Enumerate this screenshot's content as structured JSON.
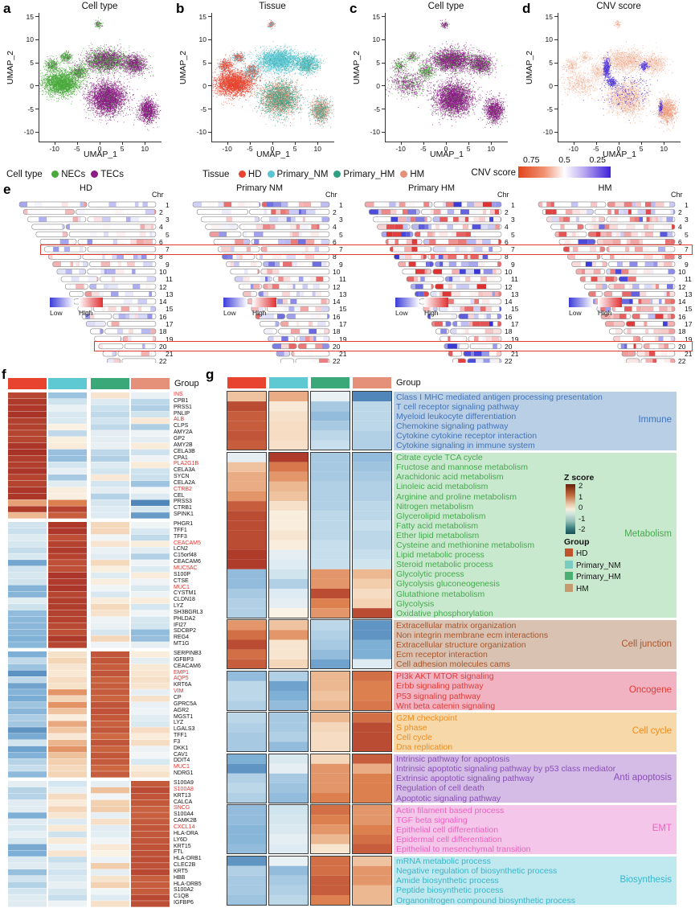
{
  "letters": {
    "a": "a",
    "b": "b",
    "c": "c",
    "d": "d",
    "e": "e",
    "f": "f",
    "g": "g"
  },
  "colors": {
    "necs": "#4aa93c",
    "tecs": "#8a1c84",
    "hd": "#e8432e",
    "primary_nm": "#5bc4d2",
    "primary_hm": "#2ea183",
    "hm": "#e59179",
    "header": [
      "#e8432e",
      "#5ec8d3",
      "#3aa878",
      "#e5917a"
    ],
    "cnv_gradient_left": "#e2441a",
    "cnv_gradient_right": "#3d20d9",
    "highlight_box": "#e03a30"
  },
  "umap": {
    "x_label": "UMAP_1",
    "y_label": "UMAP_2",
    "x_ticks": [
      "-10",
      "-5",
      "0",
      "5",
      "10"
    ],
    "y_ticks": [
      "15",
      "10",
      "5",
      "0",
      "-5",
      "-10"
    ],
    "panels": [
      {
        "letter": "a",
        "title": "Cell type"
      },
      {
        "letter": "b",
        "title": "Tissue"
      },
      {
        "letter": "c",
        "title": "Cell type"
      },
      {
        "letter": "d",
        "title": "CNV score"
      }
    ]
  },
  "legend_row": {
    "cell_type": {
      "label": "Cell type",
      "items": [
        {
          "label": "NECs",
          "color": "#4aa93c"
        },
        {
          "label": "TECs",
          "color": "#8a1c84"
        }
      ]
    },
    "tissue": {
      "label": "Tissue",
      "items": [
        {
          "label": "HD",
          "color": "#e8432e"
        },
        {
          "label": "Primary_NM",
          "color": "#5bc4d2"
        },
        {
          "label": "Primary_HM",
          "color": "#2ea183"
        },
        {
          "label": "HM",
          "color": "#e59179"
        }
      ]
    },
    "cnv": {
      "label": "CNV score",
      "ticks": [
        "0.75",
        "0.5",
        "0.25"
      ]
    }
  },
  "panel_e": {
    "chr_label": "Chr",
    "low_label": "Low",
    "high_label": "High",
    "chromosomes": [
      1,
      2,
      3,
      4,
      5,
      6,
      7,
      8,
      9,
      10,
      11,
      12,
      13,
      14,
      15,
      16,
      17,
      18,
      19,
      20,
      21,
      22
    ],
    "highlighted_chromosomes": [
      7,
      20
    ],
    "centromere_fracs": [
      0.5,
      0.39,
      0.46,
      0.27,
      0.27,
      0.32,
      0.38,
      0.31,
      0.35,
      0.3,
      0.4,
      0.26,
      0.17,
      0.17,
      0.19,
      0.41,
      0.29,
      0.21,
      0.45,
      0.44,
      0.27,
      0.29
    ],
    "columns": [
      {
        "title": "HD",
        "red_p": 0.18,
        "blue_p": 0.22,
        "white_p": 0.6,
        "intensity": 0.55
      },
      {
        "title": "Primary NM",
        "red_p": 0.3,
        "blue_p": 0.3,
        "white_p": 0.4,
        "intensity": 0.75
      },
      {
        "title": "Primary HM",
        "red_p": 0.42,
        "blue_p": 0.33,
        "white_p": 0.25,
        "intensity": 1.0
      },
      {
        "title": "HM",
        "red_p": 0.55,
        "blue_p": 0.15,
        "white_p": 0.3,
        "intensity": 0.95
      }
    ]
  },
  "panel_f": {
    "group_label": "Group",
    "group_patterns": [
      [
        2.3,
        -0.55,
        -0.4,
        -0.5
      ],
      [
        -0.9,
        2.2,
        -0.1,
        -0.6
      ],
      [
        -1.3,
        0.6,
        1.9,
        -0.2
      ],
      [
        -1.0,
        -0.1,
        0.3,
        2.0
      ]
    ],
    "genes": [
      [
        "INS",
        1,
        0
      ],
      [
        "CPB1",
        0,
        0
      ],
      [
        "PRSS1",
        0,
        0
      ],
      [
        "PNLIP",
        0,
        0
      ],
      [
        "ALB",
        1,
        0
      ],
      [
        "CLPS",
        0,
        0
      ],
      [
        "AMY2A",
        0,
        0
      ],
      [
        "GP2",
        0,
        0
      ],
      [
        "AMY2B",
        0,
        0
      ],
      [
        "CELA3B",
        0,
        0
      ],
      [
        "CPA1",
        0,
        0
      ],
      [
        "PLA2G1B",
        1,
        0
      ],
      [
        "CELA3A",
        0,
        0
      ],
      [
        "SYCN",
        0,
        0
      ],
      [
        "CELA2A",
        0,
        0
      ],
      [
        "CTRB2",
        1,
        0
      ],
      [
        "CEL",
        0,
        0
      ],
      [
        "PRSS3",
        0,
        0
      ],
      [
        "CTRB1",
        0,
        0
      ],
      [
        "SPINK1",
        0,
        0
      ],
      [
        "PHGR1",
        0,
        1
      ],
      [
        "TFF1",
        0,
        1
      ],
      [
        "TFF3",
        0,
        1
      ],
      [
        "CEACAM5",
        1,
        1
      ],
      [
        "LCN2",
        0,
        1
      ],
      [
        "C15orf48",
        0,
        1
      ],
      [
        "CEACAM6",
        0,
        1
      ],
      [
        "MUC5AC",
        1,
        1
      ],
      [
        "S100P",
        0,
        1
      ],
      [
        "CTSE",
        0,
        1
      ],
      [
        "MUC1",
        1,
        1
      ],
      [
        "CYSTM1",
        0,
        1
      ],
      [
        "CLDN18",
        0,
        1
      ],
      [
        "LYZ",
        0,
        1
      ],
      [
        "SH3BGRL3",
        0,
        1
      ],
      [
        "PHLDA2",
        0,
        1
      ],
      [
        "IFI27",
        0,
        1
      ],
      [
        "SDCBP2",
        0,
        1
      ],
      [
        "REG4",
        0,
        1
      ],
      [
        "MT1G",
        0,
        1
      ],
      [
        "SERPINB3",
        0,
        2
      ],
      [
        "IGFBP3",
        0,
        2
      ],
      [
        "CEACAM6",
        0,
        2
      ],
      [
        "EMP1",
        1,
        2
      ],
      [
        "AQP5",
        1,
        2
      ],
      [
        "KRT6A",
        0,
        2
      ],
      [
        "VIM",
        1,
        2
      ],
      [
        "CP",
        0,
        2
      ],
      [
        "GPRC5A",
        0,
        2
      ],
      [
        "AGR2",
        0,
        2
      ],
      [
        "MGST1",
        0,
        2
      ],
      [
        "LYZ",
        0,
        2
      ],
      [
        "LGALS3",
        0,
        2
      ],
      [
        "TFF1",
        0,
        2
      ],
      [
        "F3",
        0,
        2
      ],
      [
        "DKK1",
        0,
        2
      ],
      [
        "CAV1",
        0,
        2
      ],
      [
        "DDIT4",
        0,
        2
      ],
      [
        "MUC1",
        1,
        2
      ],
      [
        "NDRG1",
        0,
        2
      ],
      [
        "S100A9",
        0,
        3
      ],
      [
        "S100A8",
        1,
        3
      ],
      [
        "KRT13",
        0,
        3
      ],
      [
        "CALCA",
        0,
        3
      ],
      [
        "SNCG",
        1,
        3
      ],
      [
        "S100A4",
        0,
        3
      ],
      [
        "CAMK2B",
        0,
        3
      ],
      [
        "CXCL14",
        1,
        3
      ],
      [
        "HLA-DRA",
        0,
        3
      ],
      [
        "LY6D",
        0,
        3
      ],
      [
        "KRT15",
        0,
        3
      ],
      [
        "FTL",
        0,
        3
      ],
      [
        "HLA-DRB1",
        0,
        3
      ],
      [
        "CLEC2B",
        0,
        3
      ],
      [
        "KRT5",
        0,
        3
      ],
      [
        "HBB",
        0,
        3
      ],
      [
        "HLA-DRB5",
        0,
        3
      ],
      [
        "S100A2",
        0,
        3
      ],
      [
        "C1QB",
        0,
        3
      ],
      [
        "IGFBP6",
        0,
        3
      ]
    ],
    "overrides": {
      "17": [
        1.2,
        1.5,
        -0.6,
        -2.1
      ],
      "18": [
        2.3,
        2.2,
        -0.4,
        -0.6
      ],
      "19": [
        1.0,
        1.9,
        -0.4,
        -1.8
      ]
    }
  },
  "panel_g": {
    "group_label": "Group",
    "zscore_legend": {
      "title": "Z score",
      "ticks": [
        "2",
        "1",
        "0",
        "-1",
        "-2"
      ]
    },
    "group_legend": {
      "title": "Group",
      "items": [
        {
          "label": "HD",
          "color": "#c0532c"
        },
        {
          "label": "Primary_NM",
          "color": "#79ccc2"
        },
        {
          "label": "Primary_HM",
          "color": "#4bae72"
        },
        {
          "label": "HM",
          "color": "#c49a6e"
        }
      ]
    },
    "categories": [
      {
        "name": "Immune",
        "text_color": "#4273b8",
        "bg_color": "#b9cfe6",
        "rows": [
          {
            "label": "Class I MHC mediated antigen processing presentation",
            "v": [
              0.9,
              1.1,
              -0.2,
              -2.1
            ]
          },
          {
            "label": "T cell receptor signaling pathway",
            "v": [
              2.1,
              0.2,
              -1.1,
              -0.9
            ]
          },
          {
            "label": "Myeloid leukocyte differentiation",
            "v": [
              1.9,
              0.4,
              -1.3,
              -0.9
            ]
          },
          {
            "label": "Chemokine signaling pathway",
            "v": [
              1.9,
              0.5,
              -1.1,
              -0.9
            ]
          },
          {
            "label": "Cytokine cytokine receptor interaction",
            "v": [
              2.0,
              0.5,
              -0.9,
              -1.0
            ]
          },
          {
            "label": "Cytokine signaling in immune system",
            "v": [
              1.9,
              0.4,
              -0.8,
              -1.0
            ]
          }
        ]
      },
      {
        "name": "Metabolism",
        "text_color": "#44a94e",
        "bg_color": "#c9e9ce",
        "rows": [
          {
            "label": "Citrate cycle TCA cycle",
            "v": [
              -0.3,
              2.3,
              -1.1,
              -1.3
            ]
          },
          {
            "label": "Fructose and mannose metabolism",
            "v": [
              0.9,
              1.6,
              -1.1,
              -1.2
            ]
          },
          {
            "label": "Arachidonic acid metabolism",
            "v": [
              1.1,
              1.3,
              -1.1,
              -1.1
            ]
          },
          {
            "label": "Linoleic acid metabolism",
            "v": [
              1.1,
              1.0,
              -1.0,
              -1.0
            ]
          },
          {
            "label": "Arginine and proline metabolism",
            "v": [
              1.3,
              0.9,
              -1.0,
              -1.0
            ]
          },
          {
            "label": "Nitrogen metabolism",
            "v": [
              1.9,
              0.4,
              -1.0,
              -0.9
            ]
          },
          {
            "label": "Glycerolipid metabolism",
            "v": [
              2.1,
              0.1,
              -0.9,
              -0.9
            ]
          },
          {
            "label": "Fatty acid metabolism",
            "v": [
              2.1,
              0.1,
              -0.9,
              -0.8
            ]
          },
          {
            "label": "Ether lipid metabolism",
            "v": [
              2.1,
              0.3,
              -0.9,
              -0.9
            ]
          },
          {
            "label": "Cysteine and methionine metabolism",
            "v": [
              2.1,
              0.1,
              -0.8,
              -0.9
            ]
          },
          {
            "label": "Lipid metabolic process",
            "v": [
              2.3,
              -0.3,
              -0.8,
              -0.8
            ]
          },
          {
            "label": "Steroid metabolic process",
            "v": [
              2.3,
              -0.4,
              -0.8,
              -0.7
            ]
          },
          {
            "label": "Glycolytic process",
            "v": [
              -1.3,
              -0.7,
              1.3,
              1.0
            ]
          },
          {
            "label": "Glycolysis gluconeogenesis",
            "v": [
              -1.3,
              -1.0,
              1.3,
              0.8
            ]
          },
          {
            "label": "Glutathione metabolism",
            "v": [
              -1.1,
              -0.4,
              2.1,
              0.5
            ]
          },
          {
            "label": "Glycolysis",
            "v": [
              -1.0,
              -0.3,
              1.5,
              0.7
            ]
          },
          {
            "label": "Oxidative phosphorylation",
            "v": [
              -1.0,
              0.0,
              1.3,
              2.1
            ]
          }
        ]
      },
      {
        "name": "Cell junction",
        "text_color": "#a8562c",
        "bg_color": "#d9c2b2",
        "rows": [
          {
            "label": "Extracellular matrix organization",
            "v": [
              1.3,
              0.9,
              -0.9,
              -1.9
            ]
          },
          {
            "label": "Non integrin membrane ecm interactions",
            "v": [
              1.7,
              1.3,
              -1.0,
              -1.9
            ]
          },
          {
            "label": "Extracellular structure organization",
            "v": [
              2.1,
              0.3,
              -1.1,
              -1.5
            ]
          },
          {
            "label": "Ecm receptor interaction",
            "v": [
              1.7,
              0.3,
              -1.3,
              -1.5
            ]
          },
          {
            "label": "Cell adhesion molecules cams",
            "v": [
              1.9,
              0.6,
              -1.7,
              -0.4
            ]
          }
        ]
      },
      {
        "name": "Oncogene",
        "text_color": "#e23b36",
        "bg_color": "#f1b3c2",
        "rows": [
          {
            "label": "PI3k AKT MTOR signaling",
            "v": [
              -1.3,
              -1.0,
              1.0,
              1.7
            ]
          },
          {
            "label": "Erbb signaling pathway",
            "v": [
              -0.9,
              -1.7,
              1.0,
              1.5
            ]
          },
          {
            "label": "P53 signaling pathway",
            "v": [
              -0.9,
              -1.5,
              0.9,
              1.5
            ]
          },
          {
            "label": "Wnt beta catenin signaling",
            "v": [
              -1.0,
              -1.3,
              1.0,
              1.6
            ]
          }
        ]
      },
      {
        "name": "Cell cycle",
        "text_color": "#ef8d20",
        "bg_color": "#f6d8a9",
        "rows": [
          {
            "label": "G2M checkpoint",
            "v": [
              -0.9,
              -1.1,
              1.0,
              1.7
            ]
          },
          {
            "label": "S phase",
            "v": [
              -1.0,
              -1.1,
              0.6,
              2.1
            ]
          },
          {
            "label": "Cell cycle",
            "v": [
              -1.1,
              -1.0,
              0.5,
              2.1
            ]
          },
          {
            "label": "Dna replication",
            "v": [
              -1.1,
              -1.3,
              0.5,
              2.1
            ]
          }
        ]
      },
      {
        "name": "Anti apoptosis",
        "text_color": "#8a4fb5",
        "bg_color": "#d4bce6",
        "rows": [
          {
            "label": "Intrinsic pathway for apoptosis",
            "v": [
              -1.5,
              -0.5,
              0.6,
              1.9
            ]
          },
          {
            "label": "Intrinsic apoptotic signaling pathway by p53 class mediator",
            "v": [
              -1.9,
              -0.3,
              1.3,
              1.1
            ]
          },
          {
            "label": "Extrinsic apoptotic signaling pathway",
            "v": [
              -1.0,
              -1.1,
              1.3,
              1.5
            ]
          },
          {
            "label": "Regulation of cell death",
            "v": [
              -0.9,
              -1.2,
              1.3,
              1.5
            ]
          },
          {
            "label": "Apoptotic signaling pathway",
            "v": [
              -1.0,
              -1.3,
              1.5,
              1.5
            ]
          }
        ]
      },
      {
        "name": "EMT",
        "text_color": "#ec64be",
        "bg_color": "#f3c6ea",
        "rows": [
          {
            "label": "Actin filament based process",
            "v": [
              -1.3,
              -0.7,
              1.7,
              1.3
            ]
          },
          {
            "label": "TGF beta signaling",
            "v": [
              -1.3,
              -0.6,
              1.5,
              1.3
            ]
          },
          {
            "label": "Epithelial cell differentiation",
            "v": [
              -1.4,
              -0.5,
              1.3,
              1.5
            ]
          },
          {
            "label": "Epidermal cell differentiation",
            "v": [
              -1.4,
              -0.3,
              1.0,
              1.7
            ]
          },
          {
            "label": "Epithelial to mesenchymal transition",
            "v": [
              -1.3,
              -0.4,
              0.3,
              1.9
            ]
          }
        ]
      },
      {
        "name": "Biosynthesis",
        "text_color": "#3ab5c9",
        "bg_color": "#bfe9ef",
        "rows": [
          {
            "label": "mRNA metabolic process",
            "v": [
              -1.9,
              -0.2,
              1.7,
              0.9
            ]
          },
          {
            "label": "Negative regulation of biosynthetic process",
            "v": [
              -1.0,
              -1.3,
              1.7,
              1.3
            ]
          },
          {
            "label": "Amide biosynthetic process",
            "v": [
              -1.1,
              -1.1,
              1.9,
              1.3
            ]
          },
          {
            "label": "Peptide biosynthetic process",
            "v": [
              -1.1,
              -1.0,
              1.9,
              1.0
            ]
          },
          {
            "label": "Organonitrogen compound biosynthetic process",
            "v": [
              -1.2,
              -0.9,
              1.5,
              1.0
            ]
          }
        ]
      }
    ]
  }
}
